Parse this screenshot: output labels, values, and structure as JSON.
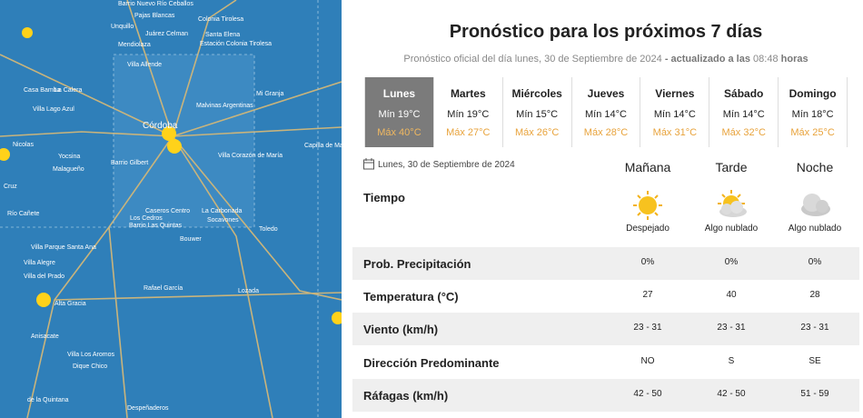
{
  "map": {
    "labels": [
      "Barrio Nuevo Río Ceballos",
      "Pajas Blancas",
      "Colonia Tirolesa",
      "Unquillo",
      "Juárez Celman",
      "Santa Elena",
      "Mendiolaza",
      "Estación Colonia Tirolesa",
      "Villa Allende",
      "Casa Bamba",
      "La Calera",
      "Mi Granja",
      "Villa Lago Azul",
      "Malvinas Argentinas",
      "Córdoba",
      "Capilla de María",
      "Villa Corazón de María",
      "Nicolas",
      "Yocsina",
      "Barrio Gilbert",
      "Malagueño",
      "Cruz",
      "Río Cañete",
      "Caseros Centro",
      "La Carbonada",
      "Los Cedros",
      "Socavones",
      "Barrio Las Quintas",
      "Toledo",
      "Bouwer",
      "Villa Parque Santa Ana",
      "Villa Alegre",
      "Villa del Prado",
      "Alta Gracia",
      "Rafael García",
      "Lozada",
      "Anisacate",
      "Villa Los Aromos",
      "Dique Chico",
      "de la Quintana",
      "Despeñaderos"
    ]
  },
  "title": "Pronóstico para los próximos 7 días",
  "subtitle": {
    "prefix": "Pronóstico oficial del día",
    "date": "lunes, 30 de Septiembre de 2024",
    "middle": "- actualizado a las",
    "time": "08:48",
    "suffix": "horas"
  },
  "days": [
    {
      "name": "Lunes",
      "min": "Mín 19°C",
      "max": "Máx 40°C"
    },
    {
      "name": "Martes",
      "min": "Mín 19°C",
      "max": "Máx 27°C"
    },
    {
      "name": "Miércoles",
      "min": "Mín 15°C",
      "max": "Máx 26°C"
    },
    {
      "name": "Jueves",
      "min": "Mín 14°C",
      "max": "Máx 28°C"
    },
    {
      "name": "Viernes",
      "min": "Mín 14°C",
      "max": "Máx 31°C"
    },
    {
      "name": "Sábado",
      "min": "Mín 14°C",
      "max": "Máx 32°C"
    },
    {
      "name": "Domingo",
      "min": "Mín 18°C",
      "max": "Máx 25°C"
    }
  ],
  "table": {
    "date": "Lunes, 30 de Septiembre de 2024",
    "columns": [
      "Mañana",
      "Tarde",
      "Noche"
    ],
    "weather": {
      "label": "Tiempo",
      "conditions": [
        "Despejado",
        "Algo nublado",
        "Algo nublado"
      ]
    },
    "rows": [
      {
        "label": "Prob. Precipitación",
        "values": [
          "0%",
          "0%",
          "0%"
        ]
      },
      {
        "label": "Temperatura (°C)",
        "values": [
          "27",
          "40",
          "28"
        ]
      },
      {
        "label": "Viento (km/h)",
        "values": [
          "23 - 31",
          "23 - 31",
          "23 - 31"
        ]
      },
      {
        "label": "Dirección Predominante",
        "values": [
          "NO",
          "S",
          "SE"
        ]
      },
      {
        "label": "Ráfagas (km/h)",
        "values": [
          "42 - 50",
          "42 - 50",
          "51 - 59"
        ]
      }
    ]
  }
}
